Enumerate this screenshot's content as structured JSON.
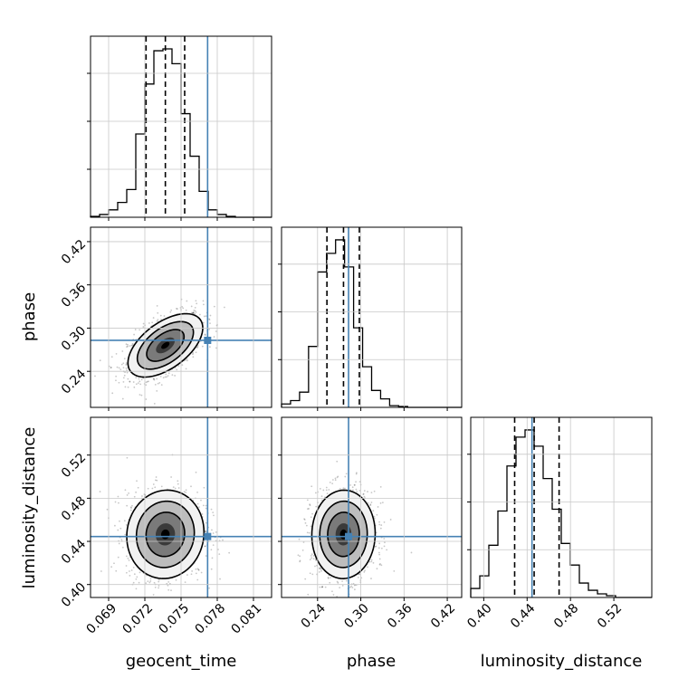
{
  "chart_data": {
    "type": "corner",
    "parameters": [
      "geocent_time",
      "phase",
      "luminosity_distance"
    ],
    "axis_labels": {
      "geocent_time": "geocent_time",
      "phase": "phase",
      "luminosity_distance": "luminosity_distance"
    },
    "ranges": {
      "geocent_time": [
        0.0675,
        0.0825
      ],
      "phase": [
        0.19,
        0.44
      ],
      "luminosity_distance": [
        0.388,
        0.555
      ]
    },
    "ticks": {
      "geocent_time": [
        "0.069",
        "0.072",
        "0.075",
        "0.078",
        "0.081"
      ],
      "phase": [
        "0.24",
        "0.30",
        "0.36",
        "0.42"
      ],
      "luminosity_distance": [
        "0.40",
        "0.44",
        "0.48",
        "0.52"
      ]
    },
    "truths": {
      "geocent_time": 0.0772,
      "phase": 0.283,
      "luminosity_distance": 0.4445
    },
    "quantiles": {
      "geocent_time": [
        0.0721,
        0.0737,
        0.0753
      ],
      "phase": [
        0.253,
        0.276,
        0.298
      ],
      "luminosity_distance": [
        0.4285,
        0.4465,
        0.4695
      ]
    },
    "histograms": {
      "geocent_time": {
        "edges": [
          0.0675,
          0.06825,
          0.069,
          0.06975,
          0.0705,
          0.07125,
          0.072,
          0.07275,
          0.0735,
          0.07425,
          0.075,
          0.07575,
          0.0765,
          0.07725,
          0.078,
          0.07875,
          0.0795,
          0.08025,
          0.081,
          0.08175,
          0.0825
        ],
        "counts": [
          0.005,
          0.015,
          0.04,
          0.08,
          0.15,
          0.45,
          0.72,
          0.9,
          0.91,
          0.83,
          0.56,
          0.33,
          0.14,
          0.04,
          0.015,
          0.005,
          0,
          0,
          0,
          0
        ]
      },
      "phase": {
        "edges": [
          0.19,
          0.2025,
          0.215,
          0.2275,
          0.24,
          0.2525,
          0.265,
          0.2775,
          0.29,
          0.3025,
          0.315,
          0.3275,
          0.34,
          0.3525,
          0.365,
          0.3775,
          0.39,
          0.4025,
          0.415,
          0.4275,
          0.44
        ],
        "counts": [
          0.02,
          0.04,
          0.09,
          0.36,
          0.8,
          0.91,
          0.99,
          0.83,
          0.47,
          0.24,
          0.1,
          0.05,
          0.01,
          0.005,
          0,
          0,
          0,
          0,
          0,
          0
        ]
      },
      "luminosity_distance": {
        "edges": [
          0.388,
          0.39635,
          0.4047,
          0.41305,
          0.4214,
          0.42975,
          0.4381,
          0.44645,
          0.4548,
          0.46315,
          0.4715,
          0.47985,
          0.4882,
          0.49655,
          0.5049,
          0.51325,
          0.5216,
          0.52995,
          0.5383,
          0.54665,
          0.555
        ],
        "counts": [
          0.05,
          0.12,
          0.29,
          0.48,
          0.73,
          0.89,
          0.93,
          0.84,
          0.66,
          0.49,
          0.3,
          0.18,
          0.08,
          0.04,
          0.02,
          0.01,
          0,
          0,
          0,
          0
        ]
      }
    },
    "contours": {
      "phase_vs_geocent_time": {
        "center": [
          0.0737,
          0.276
        ],
        "sigma": [
          0.00155,
          0.022
        ],
        "rho": 0.55
      },
      "luminosity_distance_vs_geocent_time": {
        "center": [
          0.0737,
          0.4465
        ],
        "sigma": [
          0.0016,
          0.0205
        ],
        "rho": 0.05
      },
      "luminosity_distance_vs_phase": {
        "center": [
          0.276,
          0.4465
        ],
        "sigma": [
          0.022,
          0.0205
        ],
        "rho": 0.02
      }
    },
    "contour_levels_sigma": [
      0.5,
      1.0,
      1.5,
      2.0
    ],
    "grid": true
  }
}
